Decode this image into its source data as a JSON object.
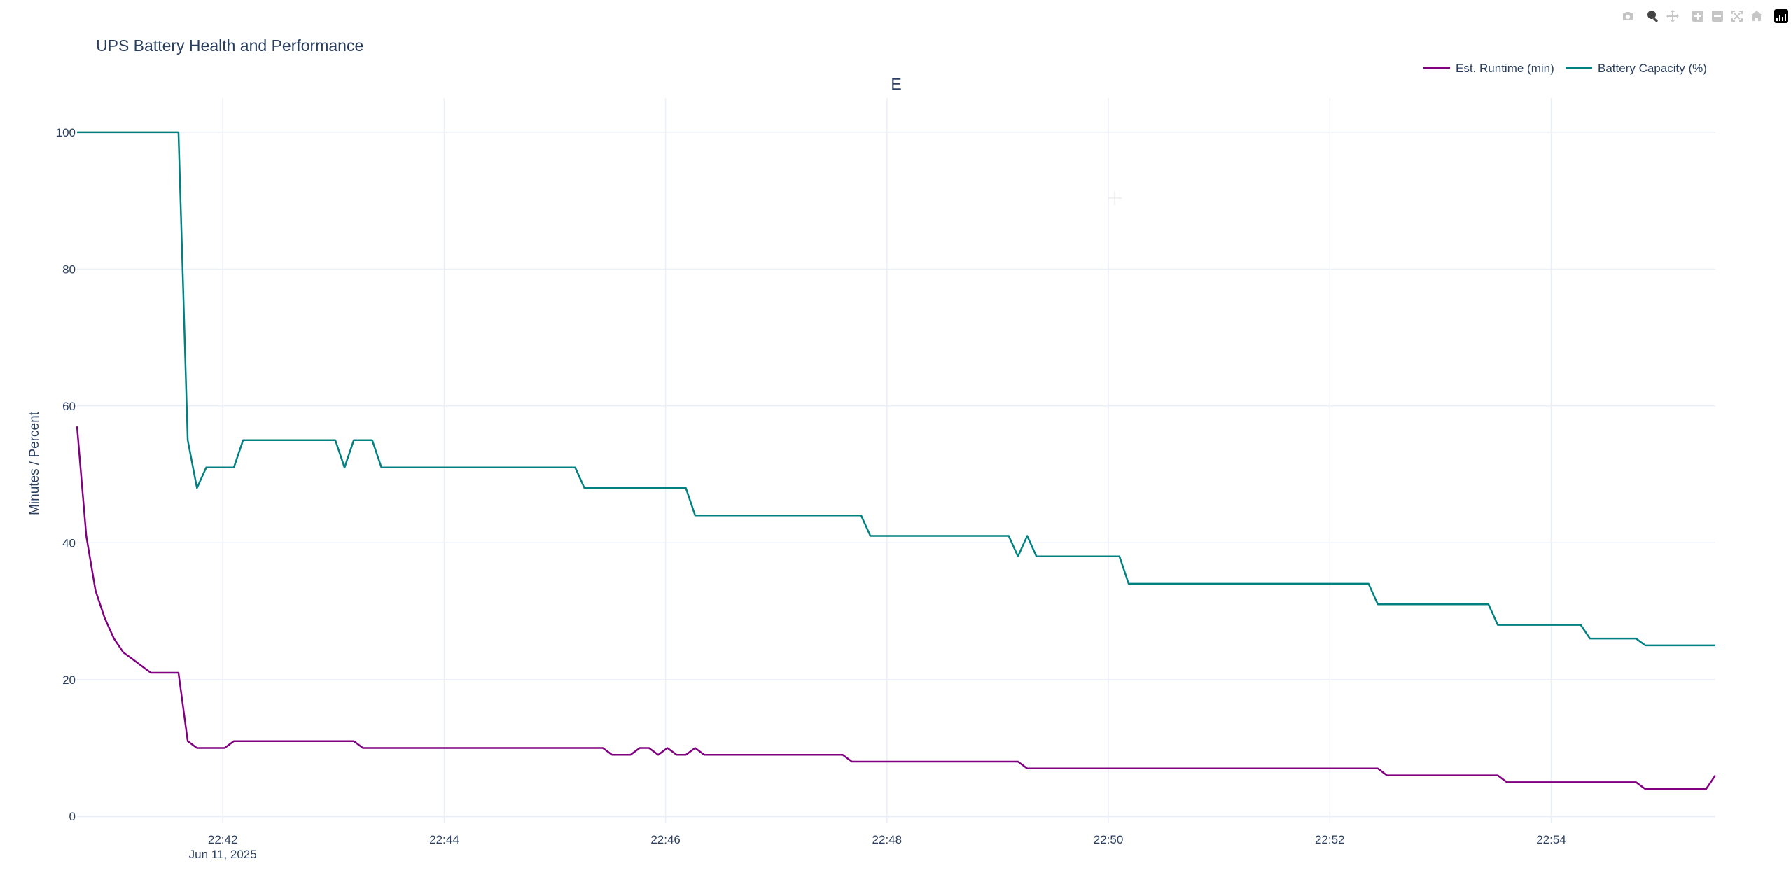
{
  "modebar": {
    "buttons": [
      {
        "name": "camera-icon",
        "active": false
      },
      {
        "name": "zoom-icon",
        "active": true
      },
      {
        "name": "pan-icon",
        "active": false
      },
      {
        "name": "zoom-in-icon",
        "active": false
      },
      {
        "name": "zoom-out-icon",
        "active": false
      },
      {
        "name": "autoscale-icon",
        "active": false
      },
      {
        "name": "reset-axes-icon",
        "active": false
      },
      {
        "name": "plotly-logo-icon",
        "active": false
      }
    ]
  },
  "chart_data": {
    "type": "line",
    "title": "UPS Battery Health and Performance",
    "annotation": "E",
    "xlabel": "",
    "ylabel": "Minutes / Percent",
    "xlim": [
      "2025-06-11 22:40:41",
      "2025-06-11 22:55:29"
    ],
    "ylim": [
      -1,
      105
    ],
    "x_ticks": [
      {
        "value": "2025-06-11 22:42:00",
        "label": "22:42",
        "sublabel": "Jun 11, 2025"
      },
      {
        "value": "2025-06-11 22:44:00",
        "label": "22:44"
      },
      {
        "value": "2025-06-11 22:46:00",
        "label": "22:46"
      },
      {
        "value": "2025-06-11 22:48:00",
        "label": "22:48"
      },
      {
        "value": "2025-06-11 22:50:00",
        "label": "22:50"
      },
      {
        "value": "2025-06-11 22:52:00",
        "label": "22:52"
      },
      {
        "value": "2025-06-11 22:54:00",
        "label": "22:54"
      }
    ],
    "y_ticks": [
      0,
      20,
      40,
      60,
      80,
      100
    ],
    "grid": true,
    "legend": {
      "placement": "top-right",
      "orientation": "horizontal"
    },
    "series": [
      {
        "name": "Est. Runtime (min)",
        "color": "#800080",
        "points": [
          [
            "22:40:41",
            57
          ],
          [
            "22:40:46",
            41
          ],
          [
            "22:40:51",
            33
          ],
          [
            "22:40:56",
            29
          ],
          [
            "22:41:01",
            26
          ],
          [
            "22:41:06",
            24
          ],
          [
            "22:41:11",
            23
          ],
          [
            "22:41:16",
            22
          ],
          [
            "22:41:21",
            21
          ],
          [
            "22:41:26",
            21
          ],
          [
            "22:41:36",
            21
          ],
          [
            "22:41:41",
            11
          ],
          [
            "22:41:46",
            10
          ],
          [
            "22:42:01",
            10
          ],
          [
            "22:42:06",
            11
          ],
          [
            "22:43:11",
            11
          ],
          [
            "22:43:16",
            10
          ],
          [
            "22:45:26",
            10
          ],
          [
            "22:45:31",
            9
          ],
          [
            "22:45:41",
            9
          ],
          [
            "22:45:46",
            10
          ],
          [
            "22:45:51",
            10
          ],
          [
            "22:45:56",
            9
          ],
          [
            "22:46:01",
            10
          ],
          [
            "22:46:06",
            9
          ],
          [
            "22:46:11",
            9
          ],
          [
            "22:46:16",
            10
          ],
          [
            "22:46:21",
            9
          ],
          [
            "22:47:36",
            9
          ],
          [
            "22:47:41",
            8
          ],
          [
            "22:49:11",
            8
          ],
          [
            "22:49:16",
            7
          ],
          [
            "22:52:26",
            7
          ],
          [
            "22:52:31",
            6
          ],
          [
            "22:53:31",
            6
          ],
          [
            "22:53:36",
            5
          ],
          [
            "22:54:46",
            5
          ],
          [
            "22:54:51",
            4
          ],
          [
            "22:55:24",
            4
          ],
          [
            "22:55:29",
            6
          ]
        ]
      },
      {
        "name": "Battery Capacity (%)",
        "color": "#008080",
        "points": [
          [
            "22:40:41",
            100
          ],
          [
            "22:41:36",
            100
          ],
          [
            "22:41:41",
            55
          ],
          [
            "22:41:46",
            48
          ],
          [
            "22:41:51",
            51
          ],
          [
            "22:42:06",
            51
          ],
          [
            "22:42:11",
            55
          ],
          [
            "22:43:01",
            55
          ],
          [
            "22:43:06",
            51
          ],
          [
            "22:43:11",
            55
          ],
          [
            "22:43:21",
            55
          ],
          [
            "22:43:26",
            51
          ],
          [
            "22:45:11",
            51
          ],
          [
            "22:45:16",
            48
          ],
          [
            "22:46:11",
            48
          ],
          [
            "22:46:16",
            44
          ],
          [
            "22:47:46",
            44
          ],
          [
            "22:47:51",
            41
          ],
          [
            "22:49:06",
            41
          ],
          [
            "22:49:11",
            38
          ],
          [
            "22:49:16",
            41
          ],
          [
            "22:49:21",
            38
          ],
          [
            "22:50:06",
            38
          ],
          [
            "22:50:11",
            34
          ],
          [
            "22:52:21",
            34
          ],
          [
            "22:52:26",
            31
          ],
          [
            "22:53:26",
            31
          ],
          [
            "22:53:31",
            28
          ],
          [
            "22:54:16",
            28
          ],
          [
            "22:54:21",
            26
          ],
          [
            "22:54:46",
            26
          ],
          [
            "22:54:51",
            25
          ],
          [
            "22:55:29",
            25
          ]
        ]
      }
    ]
  }
}
